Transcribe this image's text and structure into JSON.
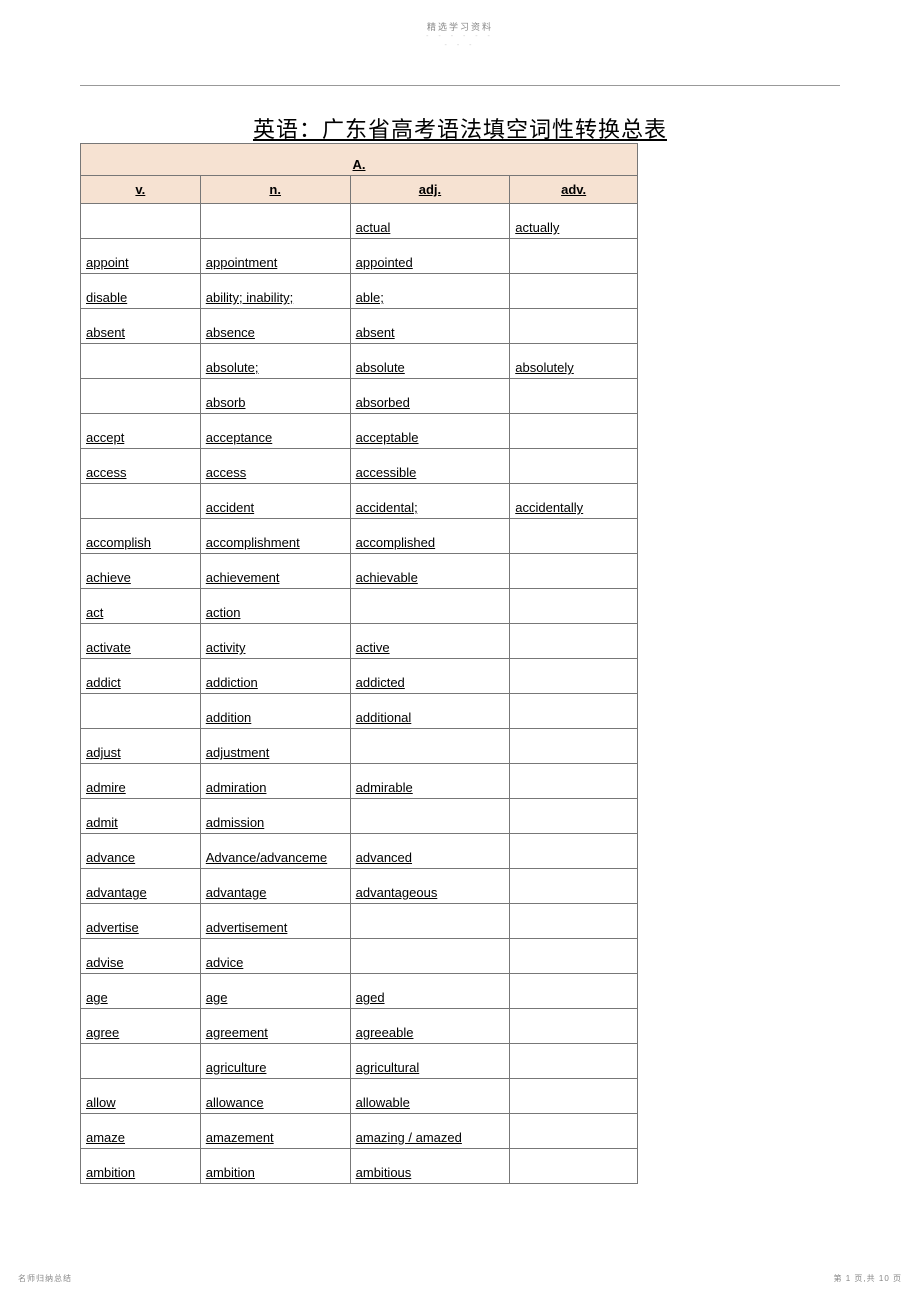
{
  "header": {
    "label": "精选学习资料",
    "sub1": "- - - - - -",
    "sub2": "- - -"
  },
  "title": "英语：广东省高考语法填空词性转换总表",
  "section_letter": "A.",
  "columns": [
    "v.",
    "n.",
    "adj.",
    "adv."
  ],
  "rows": [
    [
      "",
      "",
      "actual",
      "actually"
    ],
    [
      "appoint",
      "appointment",
      "appointed",
      ""
    ],
    [
      "disable",
      "ability; inability;",
      "able;",
      ""
    ],
    [
      "absent",
      "absence",
      "absent",
      ""
    ],
    [
      "",
      "absolute;",
      "absolute",
      "absolutely"
    ],
    [
      "",
      "absorb",
      "absorbed",
      ""
    ],
    [
      "accept",
      "acceptance",
      "acceptable",
      ""
    ],
    [
      "access",
      "access",
      "accessible",
      ""
    ],
    [
      "",
      "accident",
      "accidental;",
      "accidentally"
    ],
    [
      "accomplish",
      "accomplishment",
      "accomplished",
      ""
    ],
    [
      "achieve",
      "achievement",
      "achievable",
      ""
    ],
    [
      "act",
      "action",
      "",
      ""
    ],
    [
      "activate",
      "activity",
      "active",
      ""
    ],
    [
      "addict",
      "addiction",
      "addicted",
      ""
    ],
    [
      "",
      "addition",
      "additional",
      ""
    ],
    [
      "adjust",
      "adjustment",
      "",
      ""
    ],
    [
      "admire",
      "admiration",
      "admirable",
      ""
    ],
    [
      "admit",
      "admission",
      "",
      ""
    ],
    [
      "advance",
      "Advance/advanceme",
      "advanced",
      ""
    ],
    [
      "advantage",
      "advantage",
      "advantageous",
      ""
    ],
    [
      "advertise",
      "advertisement",
      "",
      ""
    ],
    [
      "advise",
      "advice",
      "",
      ""
    ],
    [
      "age",
      "age",
      "aged",
      ""
    ],
    [
      "agree",
      "agreement",
      "agreeable",
      ""
    ],
    [
      "",
      "agriculture",
      "agricultural",
      ""
    ],
    [
      "allow",
      "allowance",
      "allowable",
      ""
    ],
    [
      "amaze",
      "amazement",
      "amazing / amazed",
      ""
    ],
    [
      "ambition",
      "ambition",
      "ambitious",
      ""
    ]
  ],
  "footer": {
    "left": "名师归纳总结",
    "right": "第 1 页,共 10 页"
  }
}
